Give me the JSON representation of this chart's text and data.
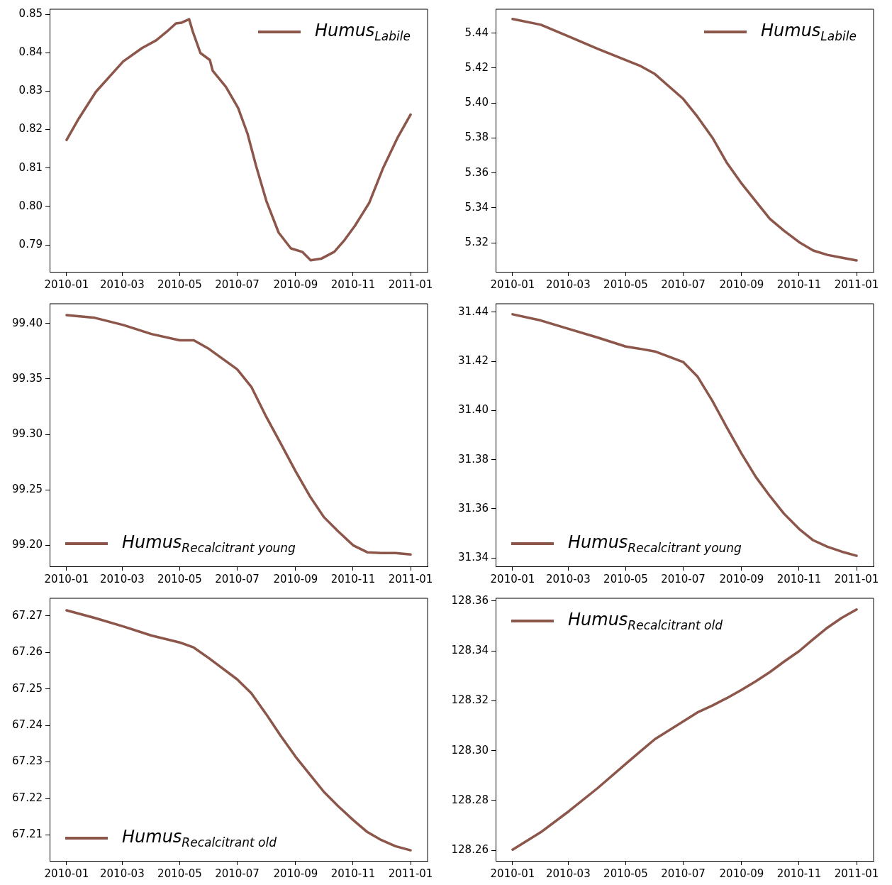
{
  "chart_data": [
    {
      "type": "line",
      "legend": "top right",
      "xlim": [
        "2009-12-14",
        "2011-01-19"
      ],
      "xticks": [
        "2010-01",
        "2010-03",
        "2010-05",
        "2010-07",
        "2010-09",
        "2010-11",
        "2011-01"
      ],
      "ylim": [
        0.783,
        0.8513
      ],
      "yticks": [
        {
          "value": 0.79,
          "label": "0.79"
        },
        {
          "value": 0.8,
          "label": "0.80"
        },
        {
          "value": 0.81,
          "label": "0.81"
        },
        {
          "value": 0.82,
          "label": "0.82"
        },
        {
          "value": 0.83,
          "label": "0.83"
        },
        {
          "value": 0.84,
          "label": "0.84"
        },
        {
          "value": 0.85,
          "label": "0.85"
        }
      ],
      "series": [
        {
          "name": "Humus$_{Labile}$",
          "color": "#8c564b",
          "x": [
            "2010-01-01",
            "2010-01-13",
            "2010-02-01",
            "2010-02-20",
            "2010-03-02",
            "2010-03-22",
            "2010-04-06",
            "2010-04-17",
            "2010-04-27",
            "2010-05-03",
            "2010-05-11",
            "2010-05-15",
            "2010-05-23",
            "2010-06-02",
            "2010-06-05",
            "2010-06-19",
            "2010-07-02",
            "2010-07-12",
            "2010-07-21",
            "2010-08-01",
            "2010-08-14",
            "2010-08-27",
            "2010-09-08",
            "2010-09-17",
            "2010-09-28",
            "2010-10-12",
            "2010-10-23",
            "2010-11-03",
            "2010-11-18",
            "2010-12-03",
            "2010-12-18",
            "2011-01-01"
          ],
          "values": [
            0.8173,
            0.8225,
            0.8298,
            0.835,
            0.8377,
            0.8412,
            0.8432,
            0.8454,
            0.8476,
            0.8478,
            0.8487,
            0.8454,
            0.8399,
            0.8381,
            0.8353,
            0.8311,
            0.8256,
            0.8189,
            0.8106,
            0.8014,
            0.7932,
            0.7891,
            0.7882,
            0.786,
            0.7864,
            0.7882,
            0.7913,
            0.795,
            0.8009,
            0.8101,
            0.8178,
            0.8239
          ]
        }
      ]
    },
    {
      "type": "line",
      "legend": "top right",
      "xlim": [
        "2009-12-14",
        "2011-01-19"
      ],
      "xticks": [
        "2010-01",
        "2010-03",
        "2010-05",
        "2010-07",
        "2010-09",
        "2010-11",
        "2011-01"
      ],
      "ylim": [
        5.3034,
        5.4537
      ],
      "yticks": [
        5.32,
        5.34,
        5.36,
        5.38,
        {
          "value": 5.4,
          "label": "5.40"
        },
        5.42,
        5.44
      ],
      "x": [
        "2010-01-01",
        "2010-01-31",
        "2010-03-02",
        "2010-04-01",
        "2010-05-01",
        "2010-05-16",
        "2010-06-01",
        "2010-07-01",
        "2010-07-16",
        "2010-08-01",
        "2010-08-16",
        "2010-09-01",
        "2010-09-16",
        "2010-10-01",
        "2010-10-16",
        "2010-11-01",
        "2010-11-16",
        "2010-12-01",
        "2010-12-16",
        "2011-01-01"
      ],
      "series": [
        {
          "name": "Humus$_{Labile}$",
          "color": "#8c564b",
          "values": [
            5.4481,
            5.4448,
            5.438,
            5.4311,
            5.4246,
            5.4214,
            5.4166,
            5.4024,
            5.3923,
            5.3802,
            5.3661,
            5.3539,
            5.3438,
            5.3337,
            5.3269,
            5.3204,
            5.3156,
            5.3131,
            5.3115,
            5.3099
          ]
        }
      ]
    },
    {
      "type": "line",
      "legend": "bottom left",
      "xlim": [
        "2009-12-14",
        "2011-01-19"
      ],
      "xticks": [
        "2010-01",
        "2010-03",
        "2010-05",
        "2010-07",
        "2010-09",
        "2010-11",
        "2011-01"
      ],
      "ylim": [
        99.181,
        99.4178
      ],
      "yticks": [
        {
          "value": 99.2,
          "label": "99.20"
        },
        99.25,
        {
          "value": 99.3,
          "label": "99.30"
        },
        99.35,
        {
          "value": 99.4,
          "label": "99.40"
        }
      ],
      "x": [
        "2010-01-01",
        "2010-01-31",
        "2010-03-02",
        "2010-04-01",
        "2010-05-01",
        "2010-05-16",
        "2010-06-01",
        "2010-07-01",
        "2010-07-16",
        "2010-08-01",
        "2010-08-16",
        "2010-09-01",
        "2010-09-16",
        "2010-10-01",
        "2010-10-16",
        "2010-11-01",
        "2010-11-16",
        "2010-12-01",
        "2010-12-16",
        "2011-01-01"
      ],
      "series": [
        {
          "name": "Humus$_{Recalcitrant young}$",
          "color": "#8c564b",
          "values": [
            99.4076,
            99.4051,
            99.3987,
            99.3905,
            99.3848,
            99.3848,
            99.3771,
            99.3587,
            99.3429,
            99.3156,
            99.2921,
            99.2667,
            99.2444,
            99.2254,
            99.2127,
            99.2,
            99.1937,
            99.193,
            99.193,
            99.1917
          ]
        }
      ]
    },
    {
      "type": "line",
      "legend": "bottom left",
      "xlim": [
        "2009-12-14",
        "2011-01-19"
      ],
      "xticks": [
        "2010-01",
        "2010-03",
        "2010-05",
        "2010-07",
        "2010-09",
        "2010-11",
        "2011-01"
      ],
      "ylim": [
        31.3366,
        31.4434
      ],
      "yticks": [
        31.34,
        31.36,
        31.38,
        {
          "value": 31.4,
          "label": "31.40"
        },
        31.42,
        31.44
      ],
      "x": [
        "2010-01-01",
        "2010-01-31",
        "2010-03-02",
        "2010-04-01",
        "2010-05-01",
        "2010-05-16",
        "2010-06-01",
        "2010-07-01",
        "2010-07-16",
        "2010-08-01",
        "2010-08-16",
        "2010-09-01",
        "2010-09-16",
        "2010-10-01",
        "2010-10-16",
        "2010-11-01",
        "2010-11-16",
        "2010-12-01",
        "2010-12-16",
        "2011-01-01"
      ],
      "series": [
        {
          "name": "Humus$_{Recalcitrant young}$",
          "color": "#8c564b",
          "values": [
            31.4391,
            31.4366,
            31.4331,
            31.4297,
            31.426,
            31.4251,
            31.424,
            31.4197,
            31.4139,
            31.4039,
            31.3933,
            31.3824,
            31.373,
            31.3652,
            31.358,
            31.3518,
            31.3472,
            31.3446,
            31.3426,
            31.3409
          ]
        }
      ]
    },
    {
      "type": "line",
      "legend": "bottom left",
      "xlim": [
        "2009-12-14",
        "2011-01-19"
      ],
      "xticks": [
        "2010-01",
        "2010-03",
        "2010-05",
        "2010-07",
        "2010-09",
        "2010-11",
        "2011-01"
      ],
      "ylim": [
        67.2029,
        67.2748
      ],
      "yticks": [
        67.21,
        67.22,
        67.23,
        67.24,
        67.25,
        67.26,
        67.27
      ],
      "x": [
        "2010-01-01",
        "2010-01-31",
        "2010-03-02",
        "2010-04-01",
        "2010-05-01",
        "2010-05-16",
        "2010-06-01",
        "2010-07-01",
        "2010-07-16",
        "2010-08-01",
        "2010-08-16",
        "2010-09-01",
        "2010-09-16",
        "2010-10-01",
        "2010-10-16",
        "2010-11-01",
        "2010-11-16",
        "2010-12-01",
        "2010-12-16",
        "2011-01-01"
      ],
      "series": [
        {
          "name": "Humus$_{Recalcitrant old}$",
          "color": "#8c564b",
          "values": [
            67.2715,
            67.2694,
            67.2671,
            67.2646,
            67.2627,
            67.2613,
            67.2584,
            67.2526,
            67.2488,
            67.243,
            67.2372,
            67.2314,
            67.2266,
            67.2218,
            67.2179,
            67.2141,
            67.2108,
            67.2086,
            67.2069,
            67.2058
          ]
        }
      ]
    },
    {
      "type": "line",
      "legend": "top left",
      "xlim": [
        "2009-12-14",
        "2011-01-19"
      ],
      "xticks": [
        "2010-01",
        "2010-03",
        "2010-05",
        "2010-07",
        "2010-09",
        "2010-11",
        "2011-01"
      ],
      "ylim": [
        128.2558,
        128.3611
      ],
      "yticks": [
        128.26,
        128.28,
        {
          "value": 128.3,
          "label": "128.30"
        },
        128.32,
        128.34,
        128.36
      ],
      "x": [
        "2010-01-01",
        "2010-01-31",
        "2010-03-02",
        "2010-04-01",
        "2010-05-01",
        "2010-05-16",
        "2010-06-01",
        "2010-07-01",
        "2010-07-16",
        "2010-08-01",
        "2010-08-16",
        "2010-09-01",
        "2010-09-16",
        "2010-10-01",
        "2010-10-16",
        "2010-11-01",
        "2010-11-16",
        "2010-12-01",
        "2010-12-16",
        "2011-01-01"
      ],
      "series": [
        {
          "name": "Humus$_{Recalcitrant old}$",
          "color": "#8c564b",
          "values": [
            128.2603,
            128.2673,
            128.2758,
            128.2849,
            128.2947,
            128.2995,
            128.3046,
            128.3117,
            128.3153,
            128.3181,
            128.321,
            128.3244,
            128.3278,
            128.3315,
            128.3357,
            128.3399,
            128.3447,
            128.3493,
            128.3532,
            128.3566
          ]
        }
      ]
    }
  ]
}
